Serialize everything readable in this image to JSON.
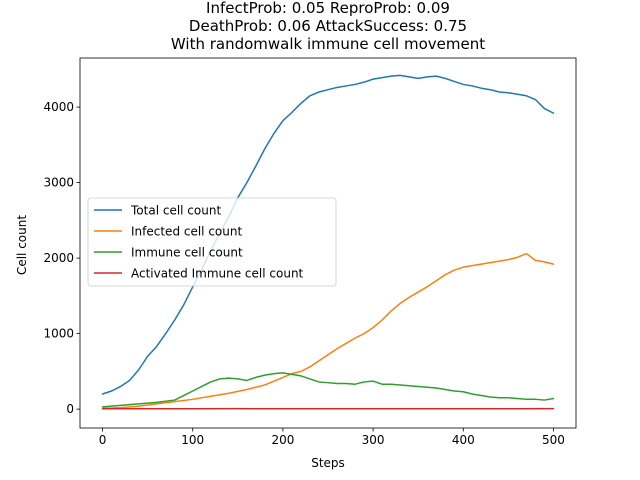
{
  "chart_data": {
    "type": "line",
    "title_lines": [
      "InfectProb: 0.05 ReproProb: 0.09",
      "DeathProb: 0.06 AttackSuccess: 0.75",
      "With randomwalk immune cell movement"
    ],
    "xlabel": "Steps",
    "ylabel": "Cell count",
    "xlim": [
      -25,
      525
    ],
    "ylim": [
      -250,
      4650
    ],
    "xticks": [
      0,
      100,
      200,
      300,
      400,
      500
    ],
    "yticks": [
      0,
      1000,
      2000,
      3000,
      4000
    ],
    "legend_position": "center-left",
    "series": [
      {
        "name": "Total cell count",
        "color": "#1f77b4",
        "points": [
          [
            0,
            200
          ],
          [
            10,
            240
          ],
          [
            20,
            300
          ],
          [
            30,
            380
          ],
          [
            40,
            520
          ],
          [
            50,
            700
          ],
          [
            60,
            830
          ],
          [
            70,
            1000
          ],
          [
            80,
            1180
          ],
          [
            90,
            1380
          ],
          [
            100,
            1620
          ],
          [
            110,
            1850
          ],
          [
            120,
            2100
          ],
          [
            130,
            2330
          ],
          [
            140,
            2550
          ],
          [
            150,
            2800
          ],
          [
            160,
            3000
          ],
          [
            170,
            3220
          ],
          [
            180,
            3450
          ],
          [
            190,
            3650
          ],
          [
            200,
            3820
          ],
          [
            210,
            3930
          ],
          [
            220,
            4050
          ],
          [
            230,
            4150
          ],
          [
            240,
            4200
          ],
          [
            250,
            4230
          ],
          [
            260,
            4260
          ],
          [
            270,
            4280
          ],
          [
            280,
            4300
          ],
          [
            290,
            4330
          ],
          [
            300,
            4370
          ],
          [
            310,
            4390
          ],
          [
            320,
            4410
          ],
          [
            330,
            4420
          ],
          [
            340,
            4400
          ],
          [
            350,
            4380
          ],
          [
            360,
            4400
          ],
          [
            370,
            4410
          ],
          [
            380,
            4380
          ],
          [
            390,
            4340
          ],
          [
            400,
            4300
          ],
          [
            410,
            4280
          ],
          [
            420,
            4250
          ],
          [
            430,
            4230
          ],
          [
            440,
            4200
          ],
          [
            450,
            4190
          ],
          [
            460,
            4170
          ],
          [
            470,
            4150
          ],
          [
            480,
            4100
          ],
          [
            490,
            3980
          ],
          [
            500,
            3920
          ]
        ]
      },
      {
        "name": "Infected cell count",
        "color": "#ff7f0e",
        "points": [
          [
            0,
            10
          ],
          [
            20,
            20
          ],
          [
            40,
            40
          ],
          [
            60,
            70
          ],
          [
            80,
            100
          ],
          [
            100,
            130
          ],
          [
            120,
            170
          ],
          [
            140,
            210
          ],
          [
            160,
            260
          ],
          [
            180,
            320
          ],
          [
            200,
            420
          ],
          [
            210,
            470
          ],
          [
            220,
            500
          ],
          [
            230,
            560
          ],
          [
            240,
            640
          ],
          [
            250,
            720
          ],
          [
            260,
            800
          ],
          [
            270,
            870
          ],
          [
            280,
            940
          ],
          [
            290,
            1000
          ],
          [
            300,
            1080
          ],
          [
            310,
            1180
          ],
          [
            320,
            1300
          ],
          [
            330,
            1400
          ],
          [
            340,
            1480
          ],
          [
            350,
            1550
          ],
          [
            360,
            1620
          ],
          [
            370,
            1700
          ],
          [
            380,
            1780
          ],
          [
            390,
            1840
          ],
          [
            400,
            1880
          ],
          [
            410,
            1900
          ],
          [
            420,
            1920
          ],
          [
            430,
            1940
          ],
          [
            440,
            1960
          ],
          [
            450,
            1980
          ],
          [
            460,
            2010
          ],
          [
            470,
            2060
          ],
          [
            480,
            1970
          ],
          [
            490,
            1950
          ],
          [
            500,
            1920
          ]
        ]
      },
      {
        "name": "Immune cell count",
        "color": "#2ca02c",
        "points": [
          [
            0,
            30
          ],
          [
            20,
            50
          ],
          [
            40,
            70
          ],
          [
            60,
            90
          ],
          [
            80,
            120
          ],
          [
            90,
            180
          ],
          [
            100,
            240
          ],
          [
            110,
            300
          ],
          [
            120,
            360
          ],
          [
            130,
            400
          ],
          [
            140,
            410
          ],
          [
            150,
            400
          ],
          [
            160,
            380
          ],
          [
            170,
            420
          ],
          [
            180,
            450
          ],
          [
            190,
            470
          ],
          [
            200,
            480
          ],
          [
            210,
            460
          ],
          [
            220,
            440
          ],
          [
            230,
            400
          ],
          [
            240,
            360
          ],
          [
            250,
            350
          ],
          [
            260,
            340
          ],
          [
            270,
            340
          ],
          [
            280,
            330
          ],
          [
            290,
            360
          ],
          [
            300,
            370
          ],
          [
            310,
            330
          ],
          [
            320,
            330
          ],
          [
            330,
            320
          ],
          [
            340,
            310
          ],
          [
            350,
            300
          ],
          [
            360,
            290
          ],
          [
            370,
            280
          ],
          [
            380,
            260
          ],
          [
            390,
            240
          ],
          [
            400,
            230
          ],
          [
            410,
            200
          ],
          [
            420,
            180
          ],
          [
            430,
            160
          ],
          [
            440,
            150
          ],
          [
            450,
            150
          ],
          [
            460,
            140
          ],
          [
            470,
            130
          ],
          [
            480,
            130
          ],
          [
            490,
            120
          ],
          [
            500,
            140
          ]
        ]
      },
      {
        "name": "Activated Immune cell count",
        "color": "#d62728",
        "points": [
          [
            0,
            5
          ],
          [
            50,
            5
          ],
          [
            100,
            5
          ],
          [
            150,
            6
          ],
          [
            200,
            5
          ],
          [
            250,
            5
          ],
          [
            300,
            5
          ],
          [
            350,
            5
          ],
          [
            400,
            5
          ],
          [
            450,
            5
          ],
          [
            500,
            6
          ]
        ]
      }
    ]
  }
}
